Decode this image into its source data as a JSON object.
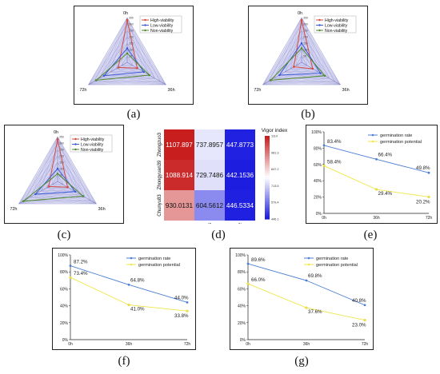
{
  "panel_labels": [
    "(a)",
    "(b)",
    "(c)",
    "(d)",
    "(e)",
    "(f)",
    "(g)"
  ],
  "colors": {
    "high_viability": "#d64b3f",
    "low_viability": "#3b5bd6",
    "non_viability": "#4f8a2e",
    "germination_rate": "#4d7fd4",
    "germination_potential": "#f0e64a",
    "heat_high": "#c81e1e",
    "heat_mid": "#ffffff",
    "heat_low": "#1d1de0"
  },
  "chart_data": [
    {
      "panel": "(a)",
      "type": "radar",
      "axes": [
        "0h",
        "36h",
        "72h"
      ],
      "r_ticks": [
        "50",
        "100",
        "150",
        "200",
        "250",
        "300",
        "350"
      ],
      "rmax": 350,
      "legend": [
        "High-viability",
        "Low-viability",
        "Non-viability"
      ],
      "legend_position": "top-right",
      "series": [
        {
          "name": "High-viability",
          "values": [
            330,
            90,
            80
          ]
        },
        {
          "name": "Low-viability",
          "values": [
            110,
            150,
            210
          ]
        },
        {
          "name": "Non-viability",
          "values": [
            70,
            200,
            280
          ]
        }
      ]
    },
    {
      "panel": "(b)",
      "type": "radar",
      "axes": [
        "0h",
        "36h",
        "72h"
      ],
      "r_ticks": [
        "50",
        "100",
        "150",
        "200",
        "250",
        "300",
        "350"
      ],
      "rmax": 350,
      "legend": [
        "High-viability",
        "Low-viability",
        "Non-viability"
      ],
      "legend_position": "top-right",
      "series": [
        {
          "name": "High-viability",
          "values": [
            330,
            100,
            70
          ]
        },
        {
          "name": "Low-viability",
          "values": [
            150,
            170,
            200
          ]
        },
        {
          "name": "Non-viability",
          "values": [
            110,
            210,
            280
          ]
        }
      ]
    },
    {
      "panel": "(c)",
      "type": "radar",
      "axes": [
        "0h",
        "36h",
        "72h"
      ],
      "r_ticks": [
        "50",
        "100",
        "150",
        "200",
        "250",
        "300",
        "350"
      ],
      "rmax": 350,
      "legend": [
        "High-viability",
        "Low-viability",
        "Non-viability"
      ],
      "legend_position": "top-right",
      "series": [
        {
          "name": "High-viability",
          "values": [
            330,
            90,
            80
          ]
        },
        {
          "name": "Low-viability",
          "values": [
            100,
            160,
            200
          ]
        },
        {
          "name": "Non-viability",
          "values": [
            60,
            230,
            310
          ]
        }
      ]
    },
    {
      "panel": "(d)",
      "type": "heatmap",
      "rows": [
        "Zhongzuo3",
        "Zhongyuan39",
        "Chunyu83"
      ],
      "columns": [
        "0",
        "36",
        "72"
      ],
      "values": [
        [
          1107.897,
          737.8957,
          447.8773
        ],
        [
          1088.914,
          729.7486,
          442.1536
        ],
        [
          930.0131,
          604.5612,
          446.5334
        ]
      ],
      "colorbar_title": "Vigor index",
      "colorbar_ticks": [
        "1114",
        "981.3",
        "847.2",
        "713.5",
        "579.4",
        "446.1"
      ],
      "vmin": 442.1536,
      "vmax": 1107.897
    },
    {
      "panel": "(e)",
      "type": "line",
      "x": [
        "0h",
        "36h",
        "72h"
      ],
      "ylim": [
        0,
        100
      ],
      "yticks": [
        "0%",
        "20%",
        "40%",
        "60%",
        "80%",
        "100%"
      ],
      "legend_position": "top-right",
      "series": [
        {
          "name": "germination rate",
          "values": [
            83.4,
            66.4,
            49.8
          ],
          "labels": [
            "83.4%",
            "66.4%",
            "49.8%"
          ]
        },
        {
          "name": "germination potential",
          "values": [
            58.4,
            29.4,
            20.2
          ],
          "labels": [
            "58.4%",
            "29.4%",
            "20.2%"
          ]
        }
      ]
    },
    {
      "panel": "(f)",
      "type": "line",
      "x": [
        "0h",
        "36h",
        "72h"
      ],
      "ylim": [
        0,
        100
      ],
      "yticks": [
        "0%",
        "20%",
        "40%",
        "60%",
        "80%",
        "100%"
      ],
      "legend_position": "top-right",
      "series": [
        {
          "name": "germination rate",
          "values": [
            87.2,
            64.8,
            44.0
          ],
          "labels": [
            "87.2%",
            "64.8%",
            "44.0%"
          ]
        },
        {
          "name": "germination potential",
          "values": [
            73.4,
            41.0,
            33.8
          ],
          "labels": [
            "73.4%",
            "41.0%",
            "33.8%"
          ]
        }
      ]
    },
    {
      "panel": "(g)",
      "type": "line",
      "x": [
        "0h",
        "36h",
        "72h"
      ],
      "ylim": [
        0,
        100
      ],
      "yticks": [
        "0%",
        "20%",
        "40%",
        "60%",
        "80%",
        "100%"
      ],
      "legend_position": "top-right",
      "series": [
        {
          "name": "germination rate",
          "values": [
            89.6,
            69.8,
            40.8
          ],
          "labels": [
            "89.6%",
            "69.8%",
            "40.8%"
          ]
        },
        {
          "name": "germination potential",
          "values": [
            66.0,
            37.6,
            23.0
          ],
          "labels": [
            "66.0%",
            "37.6%",
            "23.0%"
          ]
        }
      ]
    }
  ]
}
